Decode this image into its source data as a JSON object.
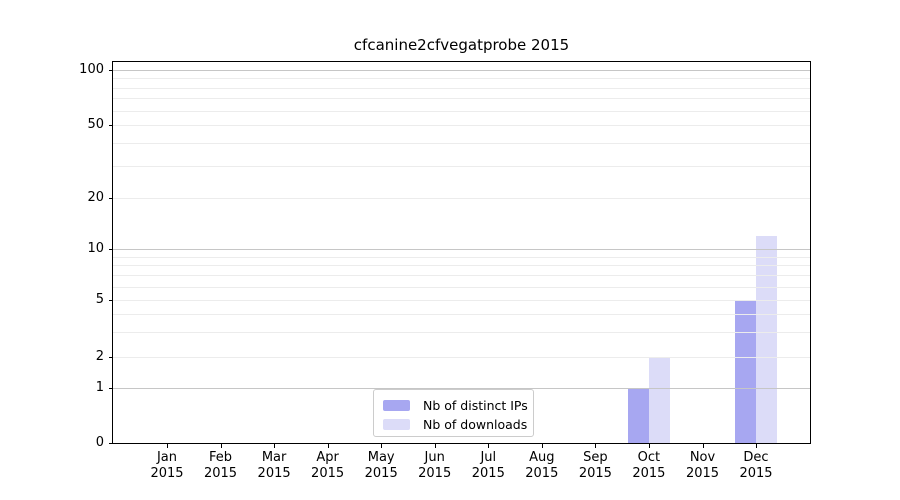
{
  "chart_data": {
    "type": "bar",
    "title": "cfcanine2cfvegatprobe 2015",
    "categories": [
      "Jan",
      "Feb",
      "Mar",
      "Apr",
      "May",
      "Jun",
      "Jul",
      "Aug",
      "Sep",
      "Oct",
      "Nov",
      "Dec"
    ],
    "category_year": "2015",
    "series": [
      {
        "name": "Nb of distinct IPs",
        "color": "#a7a7f1",
        "values": [
          0,
          0,
          0,
          0,
          0,
          0,
          0,
          0,
          0,
          1,
          0,
          5
        ]
      },
      {
        "name": "Nb of downloads",
        "color": "#dcdcf8",
        "values": [
          0,
          0,
          0,
          0,
          0,
          0,
          0,
          0,
          0,
          2,
          0,
          12
        ]
      }
    ],
    "yticks": [
      0,
      1,
      2,
      5,
      10,
      20,
      50,
      100
    ],
    "ytick_labels": [
      "0",
      "1",
      "2",
      "5",
      "10",
      "20",
      "50",
      "100"
    ],
    "ylim": [
      0,
      110
    ],
    "yscale": "log above 1, linear 0-1",
    "xlabel": "",
    "ylabel": "",
    "grid": true,
    "legend_position": "lower-center"
  }
}
